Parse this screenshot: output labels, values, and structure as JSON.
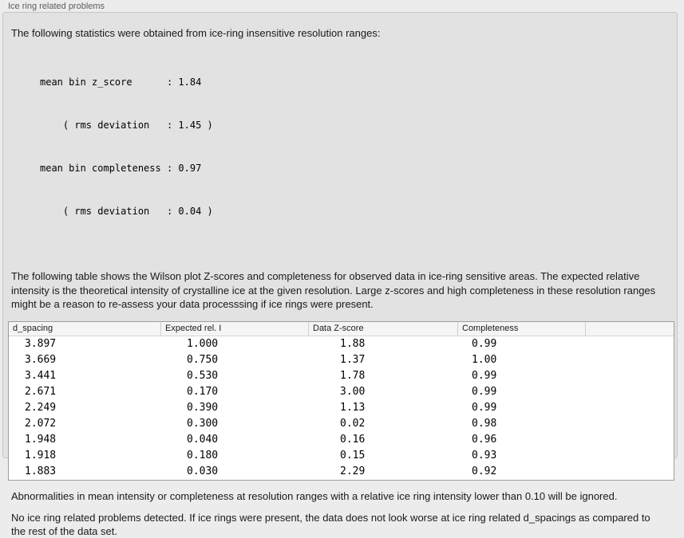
{
  "panel": {
    "title": "Ice ring related problems"
  },
  "intro": "The following statistics were obtained from ice-ring insensitive resolution ranges:",
  "stats": {
    "lines": [
      "mean bin z_score      : 1.84",
      "    ( rms deviation   : 1.45 )",
      "mean bin completeness : 0.97",
      "    ( rms deviation   : 0.04 )"
    ]
  },
  "description": "The following table shows the Wilson plot Z-scores and completeness for observed data in ice-ring sensitive areas. The expected relative intensity is the theoretical intensity of crystalline ice at the given resolution. Large z-scores and high completeness in these resolution ranges might be a reason to re-assess your data processsing if ice rings were present.",
  "table": {
    "columns": [
      "d_spacing",
      "Expected rel. I",
      "Data Z-score",
      "Completeness"
    ],
    "rows": [
      [
        "3.897",
        "1.000",
        "1.88",
        "0.99"
      ],
      [
        "3.669",
        "0.750",
        "1.37",
        "1.00"
      ],
      [
        "3.441",
        "0.530",
        "1.78",
        "0.99"
      ],
      [
        "2.671",
        "0.170",
        "3.00",
        "0.99"
      ],
      [
        "2.249",
        "0.390",
        "1.13",
        "0.99"
      ],
      [
        "2.072",
        "0.300",
        "0.02",
        "0.98"
      ],
      [
        "1.948",
        "0.040",
        "0.16",
        "0.96"
      ],
      [
        "1.918",
        "0.180",
        "0.15",
        "0.93"
      ],
      [
        "1.883",
        "0.030",
        "2.29",
        "0.92"
      ]
    ]
  },
  "notes": {
    "ignore_rule": "Abnormalities in mean intensity or completeness at resolution ranges with a relative ice ring intensity lower than 0.10 will be ignored.",
    "conclusion": "No ice ring related problems detected. If ice rings were present, the data does not look worse at ice ring related d_spacings as compared to the rest of the data set."
  },
  "colors": {
    "page_bg": "#ececec",
    "panel_bg": "#e2e2e2",
    "panel_border": "#c6c6c6",
    "label_text": "#5c5c5c",
    "body_text": "#1a1a1a",
    "table_bg": "#ffffff",
    "table_border": "#9d9d9d",
    "table_header_bg": "#f5f5f5",
    "table_header_divider": "#cfcfcf"
  }
}
